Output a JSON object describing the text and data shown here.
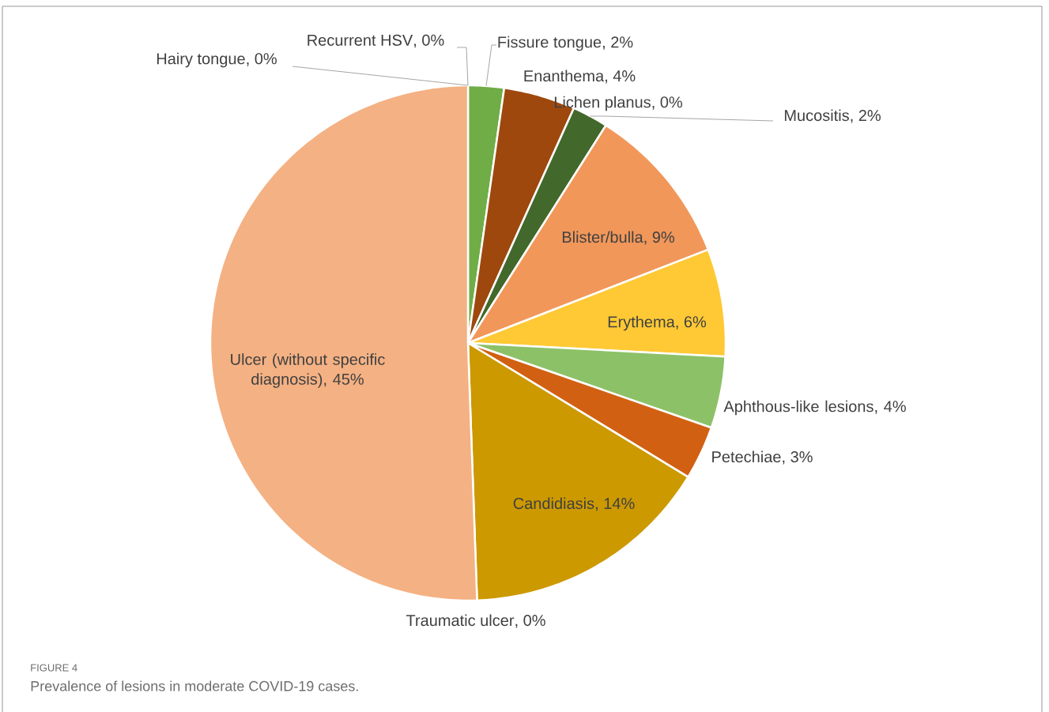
{
  "chart_data": {
    "type": "pie",
    "categories": [
      "Recurrent HSV",
      "Fissure tongue",
      "Enanthema",
      "Lichen planus",
      "Mucositis",
      "Blister/bulla",
      "Erythema",
      "Aphthous-like lesions",
      "Petechiae",
      "Candidiasis",
      "Traumatic ulcer",
      "Ulcer (without specific diagnosis)",
      "Hairy tongue"
    ],
    "values": [
      0,
      2,
      4,
      0,
      2,
      9,
      6,
      4,
      3,
      14,
      0,
      45,
      0
    ],
    "value_labels": [
      ", 0%",
      ", 2%",
      ", 4%",
      ", 0%",
      ", 2%",
      ", 9%",
      ", 6%",
      ", 4%",
      ", 3%",
      ", 14%",
      ", 0%",
      ", 45%",
      ", 0%"
    ],
    "colors": [
      null,
      "#70ad47",
      "#9e480e",
      null,
      "#43682b",
      "#f1975a",
      "#ffc935",
      "#8cc168",
      "#d26012",
      "#cc9900",
      null,
      "#f4b183",
      null
    ],
    "annotations": [
      "FIGURE 4",
      "Prevalence of lesions in moderate COVID-19 cases."
    ]
  }
}
